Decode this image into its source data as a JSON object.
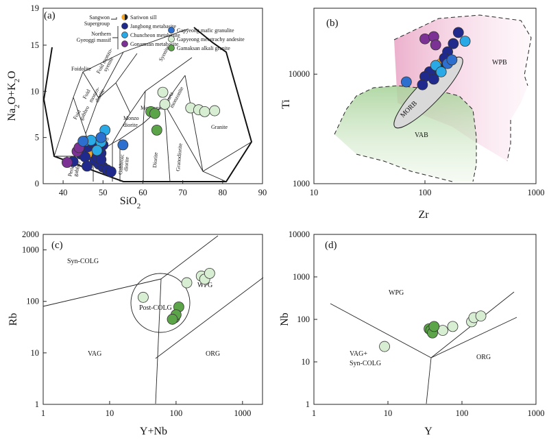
{
  "colors": {
    "sariwon_orange": "#F5A623",
    "jangbong": "#1F2A8C",
    "chuncheon": "#29A9E6",
    "gonamsan": "#7B3294",
    "gapyeong_mafic": "#2D6FCF",
    "gapyeong_andesite": "#D8EED2",
    "gamaksan": "#5BA548",
    "wpb_fill": "#F4C9DE",
    "vab_fill": "#BFDDB4",
    "morb_fill": "#D9D9D9"
  },
  "chart_data": [
    {
      "id": "a",
      "type": "scatter",
      "panel_label": "(a)",
      "xlabel": "SiO₂",
      "ylabel": "Na₂O+K₂O",
      "xlim": [
        35,
        90
      ],
      "ylim": [
        0,
        19
      ],
      "xticks": [
        40,
        50,
        60,
        70,
        80,
        90
      ],
      "yticks": [
        0,
        5,
        10,
        15,
        19
      ],
      "legend": {
        "groups": [
          {
            "name": "Sangwon Supergroup",
            "items": [
              "Sariwon sill"
            ]
          },
          {
            "name": "Northern Gyeoggi massif",
            "items": [
              "Jangbong metabasite",
              "Chuncheon metabasite",
              "Gonamsan metabasite"
            ]
          }
        ],
        "entries": [
          {
            "name": "Sariwon sill",
            "color": "#F5A623"
          },
          {
            "name": "Jangbong metabasite",
            "color": "#1F2A8C"
          },
          {
            "name": "Chuncheon metabasite",
            "color": "#29A9E6"
          },
          {
            "name": "Gonamsan metabasite",
            "color": "#7B3294"
          },
          {
            "name": "Gapyeong mafic granulite",
            "color": "#2D6FCF"
          },
          {
            "name": "Gapyeong metatrachy andesite",
            "color": "#D8EED2"
          },
          {
            "name": "Gamaksan alkali granite",
            "color": "#5BA548"
          }
        ]
      },
      "field_labels": [
        "Foidolite",
        "Foid monzo-syenite",
        "Foid monzo-diorite",
        "Foid gabbro",
        "Syenite",
        "Quartz monzonite",
        "Monzonite",
        "Monzo diorite",
        "Monzo gabbro",
        "Gabbroic diorite",
        "Diorite",
        "Granodiorite",
        "Granite",
        "Peridot gabbro",
        "Gabbro"
      ],
      "series": [
        {
          "name": "Sariwon sill",
          "color": "#F5A623",
          "points": [
            [
              46.5,
              3.4
            ],
            [
              47.3,
              3.4
            ]
          ]
        },
        {
          "name": "Jangbong metabasite",
          "color": "#1F2A8C",
          "points": [
            [
              42.5,
              2.4
            ],
            [
              44.5,
              3.2
            ],
            [
              45.5,
              2.9
            ],
            [
              46,
              1.9
            ],
            [
              48,
              2.5
            ],
            [
              49,
              2.1
            ],
            [
              50,
              1.8
            ],
            [
              51,
              1.5
            ],
            [
              52,
              1.3
            ],
            [
              48.5,
              2.9
            ],
            [
              49.5,
              3.3
            ],
            [
              46.2,
              4.0
            ],
            [
              47,
              4.5
            ],
            [
              50,
              4.2
            ],
            [
              49,
              3.8
            ],
            [
              49.5,
              2.6
            ]
          ]
        },
        {
          "name": "Chuncheon metabasite",
          "color": "#29A9E6",
          "points": [
            [
              45.5,
              4.6
            ],
            [
              47,
              4.7
            ],
            [
              49.5,
              4.5
            ],
            [
              50.5,
              5.8
            ],
            [
              48.5,
              3.6
            ]
          ]
        },
        {
          "name": "Gonamsan metabasite",
          "color": "#7B3294",
          "points": [
            [
              41,
              2.3
            ],
            [
              43.5,
              3.5
            ],
            [
              44,
              3.9
            ]
          ]
        },
        {
          "name": "Gapyeong mafic granulite",
          "color": "#2D6FCF",
          "points": [
            [
              49.5,
              5.0
            ],
            [
              55,
              4.2
            ],
            [
              45,
              4.6
            ]
          ]
        },
        {
          "name": "Gapyeong metatrachy andesite",
          "color": "#D8EED2",
          "points": [
            [
              65,
              9.9
            ],
            [
              65.5,
              8.6
            ],
            [
              72,
              8.2
            ],
            [
              74,
              8.0
            ],
            [
              75.5,
              7.8
            ],
            [
              78,
              7.9
            ]
          ]
        },
        {
          "name": "Gamaksan alkali granite",
          "color": "#5BA548",
          "points": [
            [
              62,
              7.8
            ],
            [
              63,
              7.6
            ],
            [
              63.5,
              5.8
            ]
          ]
        }
      ]
    },
    {
      "id": "b",
      "type": "scatter",
      "panel_label": "(b)",
      "xlabel": "Zr",
      "ylabel": "Ti",
      "xscale": "log",
      "yscale": "log",
      "xlim": [
        10,
        1000
      ],
      "ylim": [
        1000,
        40000
      ],
      "xticks": [
        10,
        100,
        1000
      ],
      "yticks": [
        1000,
        10000
      ],
      "field_labels": [
        "WPB",
        "VAB",
        "MORB"
      ],
      "series": [
        {
          "name": "Sariwon sill",
          "color": "#F5A623",
          "points": [
            [
              140,
              12500
            ]
          ]
        },
        {
          "name": "Jangbong metabasite",
          "color": "#1F2A8C",
          "points": [
            [
              200,
              24000
            ],
            [
              180,
              19000
            ],
            [
              160,
              16000
            ],
            [
              150,
              14000
            ],
            [
              130,
              11000
            ],
            [
              110,
              10500
            ],
            [
              100,
              9500
            ],
            [
              120,
              9000
            ],
            [
              95,
              8000
            ]
          ]
        },
        {
          "name": "Chuncheon metabasite",
          "color": "#29A9E6",
          "points": [
            [
              230,
              20000
            ],
            [
              125,
              12000
            ],
            [
              140,
              10500
            ]
          ]
        },
        {
          "name": "Gonamsan metabasite",
          "color": "#7B3294",
          "points": [
            [
              100,
              21000
            ],
            [
              120,
              22000
            ],
            [
              125,
              18500
            ]
          ]
        },
        {
          "name": "Gapyeong mafic granulite",
          "color": "#2D6FCF",
          "points": [
            [
              68,
              8500
            ],
            [
              160,
              12500
            ],
            [
              175,
              13500
            ]
          ]
        }
      ]
    },
    {
      "id": "c",
      "type": "scatter",
      "panel_label": "(c)",
      "xlabel": "Y+Nb",
      "ylabel": "Rb",
      "xscale": "log",
      "yscale": "log",
      "xlim": [
        1,
        2000
      ],
      "ylim": [
        1,
        2000
      ],
      "xticks": [
        1,
        10,
        100,
        1000
      ],
      "yticks": [
        1,
        10,
        100,
        1000,
        2000
      ],
      "field_labels": [
        "Syn-COLG",
        "WPG",
        "Post-COLG",
        "VAG",
        "ORG"
      ],
      "series": [
        {
          "name": "Gapyeong metatrachy andesite",
          "color": "#D8EED2",
          "points": [
            [
              32,
              120
            ],
            [
              145,
              230
            ],
            [
              240,
              310
            ],
            [
              270,
              270
            ],
            [
              320,
              350
            ]
          ]
        },
        {
          "name": "Gamaksan alkali granite",
          "color": "#5BA548",
          "points": [
            [
              110,
              78
            ],
            [
              95,
              48
            ],
            [
              100,
              55
            ],
            [
              88,
              45
            ]
          ]
        }
      ]
    },
    {
      "id": "d",
      "type": "scatter",
      "panel_label": "(d)",
      "xlabel": "Y",
      "ylabel": "Nb",
      "xscale": "log",
      "yscale": "log",
      "xlim": [
        1,
        1000
      ],
      "ylim": [
        1,
        10000
      ],
      "xticks": [
        1,
        10,
        100,
        1000
      ],
      "yticks": [
        1,
        10,
        100,
        1000,
        10000
      ],
      "field_labels": [
        "WPG",
        "VAG+ Syn-COLG",
        "ORG"
      ],
      "series": [
        {
          "name": "Gapyeong metatrachy andesite",
          "color": "#D8EED2",
          "points": [
            [
              9,
              23
            ],
            [
              55,
              55
            ],
            [
              75,
              68
            ],
            [
              135,
              88
            ],
            [
              145,
              110
            ],
            [
              180,
              120
            ]
          ]
        },
        {
          "name": "Gamaksan alkali granite",
          "color": "#5BA548",
          "points": [
            [
              36,
              60
            ],
            [
              38,
              55
            ],
            [
              40,
              48
            ],
            [
              42,
              68
            ]
          ]
        }
      ]
    }
  ]
}
